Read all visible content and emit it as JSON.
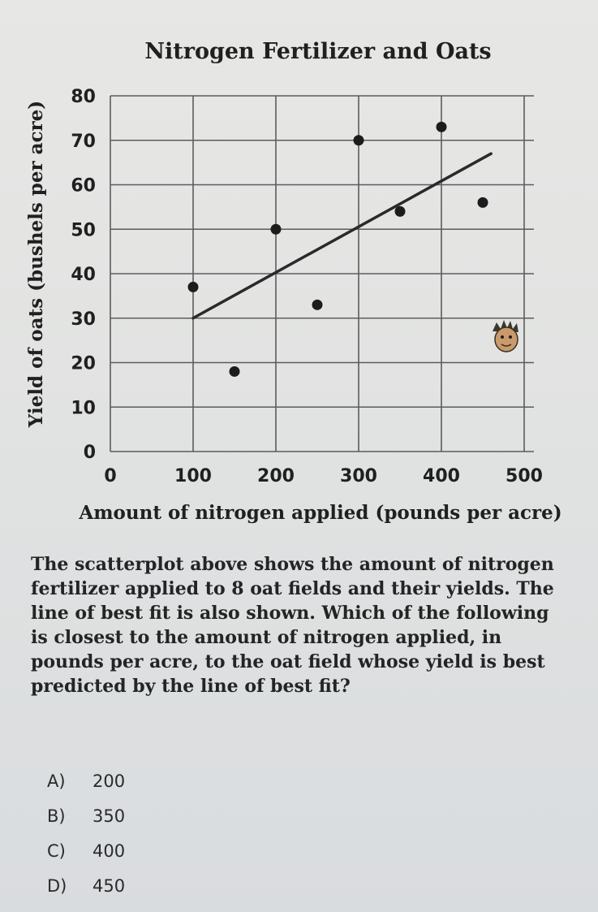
{
  "chart_data": {
    "type": "scatter",
    "title": "Nitrogen Fertilizer and Oats",
    "xlabel": "Amount of nitrogen applied (pounds per acre)",
    "ylabel": "Yield of oats (bushels per acre)",
    "xlim": [
      0,
      500
    ],
    "ylim": [
      0,
      80
    ],
    "xticks": [
      0,
      100,
      200,
      300,
      400,
      500
    ],
    "yticks": [
      0,
      10,
      20,
      30,
      40,
      50,
      60,
      70,
      80
    ],
    "grid": true,
    "points": [
      {
        "x": 100,
        "y": 37
      },
      {
        "x": 150,
        "y": 18
      },
      {
        "x": 200,
        "y": 50
      },
      {
        "x": 250,
        "y": 33
      },
      {
        "x": 300,
        "y": 70
      },
      {
        "x": 350,
        "y": 54
      },
      {
        "x": 400,
        "y": 73
      },
      {
        "x": 450,
        "y": 56
      }
    ],
    "line_of_best_fit": {
      "x": [
        100,
        460
      ],
      "y": [
        30,
        67
      ]
    }
  },
  "question": {
    "text": "The scatterplot above shows the amount of nitrogen fertilizer applied to 8 oat fields and their yields. The line of best fit is also shown. Which of the following is closest to the amount of nitrogen applied, in pounds per acre, to the oat field whose yield is best predicted by the line of best fit?",
    "choices": [
      {
        "letter": "A)",
        "value": "200"
      },
      {
        "letter": "B)",
        "value": "350"
      },
      {
        "letter": "C)",
        "value": "400"
      },
      {
        "letter": "D)",
        "value": "450"
      }
    ]
  },
  "colors": {
    "ink": "#202020",
    "grid": "#5c5c5c",
    "point": "#1c1c1c",
    "line": "#2a2a2a",
    "background": "#e4e5e4"
  },
  "icons": [
    "cartoon-face-icon"
  ]
}
